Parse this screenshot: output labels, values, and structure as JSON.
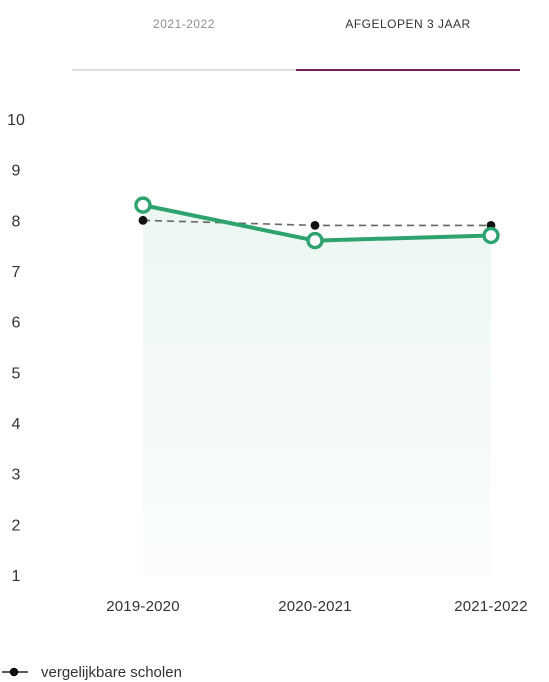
{
  "tabs": [
    {
      "label": "2021-2022",
      "active": false
    },
    {
      "label": "AFGELOPEN 3 JAAR",
      "active": true
    }
  ],
  "colors": {
    "accent": "#6c1f5d",
    "series_main": "#2ea36f",
    "series_compare": "#111111",
    "tab_inactive": "#dedede"
  },
  "chart_data": {
    "type": "line",
    "categories": [
      "2019-2020",
      "2020-2021",
      "2021-2022"
    ],
    "y_ticks": [
      10,
      9,
      8,
      7,
      6,
      5,
      4,
      3,
      2,
      1
    ],
    "ylim": [
      1,
      10
    ],
    "series": [
      {
        "values": [
          8.3,
          7.6,
          7.7
        ],
        "color": "#2ea36f",
        "marker": "hollow-circle",
        "area_fill": true
      },
      {
        "name": "vergelijkbare scholen",
        "values": [
          8.0,
          7.9,
          7.9
        ],
        "color": "#111111",
        "marker": "dot",
        "dashed": true
      }
    ],
    "legend": {
      "position": "bottom-left",
      "label": "vergelijkbare scholen"
    },
    "grid": false
  }
}
